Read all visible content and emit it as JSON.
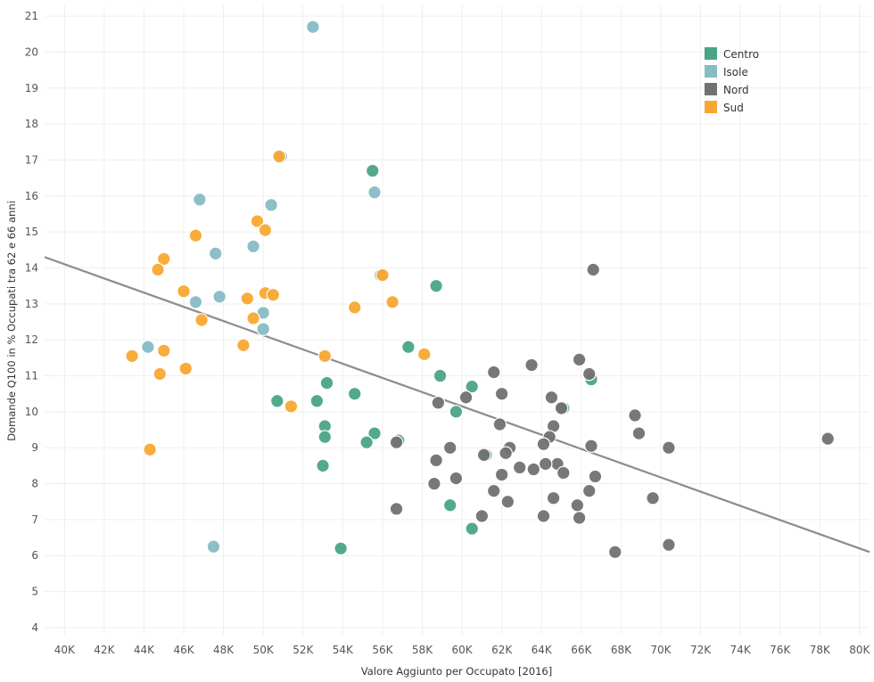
{
  "chart_data": {
    "type": "scatter",
    "xlabel": "Valore Aggiunto per Occupato [2016]",
    "ylabel": "Domande Q100 in % Occupati tra 62 e 66 anni",
    "xlim": [
      39000,
      80500
    ],
    "ylim": [
      3.8,
      21.3
    ],
    "x_ticks": [
      40000,
      42000,
      44000,
      46000,
      48000,
      50000,
      52000,
      54000,
      56000,
      58000,
      60000,
      62000,
      64000,
      66000,
      68000,
      70000,
      72000,
      74000,
      76000,
      78000,
      80000
    ],
    "x_tick_labels": [
      "40K",
      "42K",
      "44K",
      "46K",
      "48K",
      "50K",
      "52K",
      "54K",
      "56K",
      "58K",
      "60K",
      "62K",
      "64K",
      "66K",
      "68K",
      "70K",
      "72K",
      "74K",
      "76K",
      "78K",
      "80K"
    ],
    "y_ticks": [
      4,
      5,
      6,
      7,
      8,
      9,
      10,
      11,
      12,
      13,
      14,
      15,
      16,
      17,
      18,
      19,
      20,
      21
    ],
    "y_tick_labels": [
      "4",
      "5",
      "6",
      "7",
      "8",
      "9",
      "10",
      "11",
      "12",
      "13",
      "14",
      "15",
      "16",
      "17",
      "18",
      "19",
      "20",
      "21"
    ],
    "grid": true,
    "legend_position": "top-right",
    "trend_line": {
      "points": [
        [
          39000,
          14.3
        ],
        [
          80500,
          6.1
        ]
      ],
      "color": "#8c8c8c"
    },
    "series": [
      {
        "name": "Centro",
        "color": "#4aa585",
        "points": [
          [
            55500,
            16.7
          ],
          [
            58700,
            13.5
          ],
          [
            57300,
            11.8
          ],
          [
            58900,
            11.0
          ],
          [
            60500,
            10.7
          ],
          [
            66500,
            10.9
          ],
          [
            53200,
            10.8
          ],
          [
            54600,
            10.5
          ],
          [
            50700,
            10.3
          ],
          [
            52700,
            10.3
          ],
          [
            59700,
            10.0
          ],
          [
            53100,
            9.6
          ],
          [
            53100,
            9.3
          ],
          [
            55600,
            9.4
          ],
          [
            55200,
            9.15
          ],
          [
            56800,
            9.2
          ],
          [
            61200,
            8.8
          ],
          [
            65100,
            10.1
          ],
          [
            53000,
            8.5
          ],
          [
            59400,
            7.4
          ],
          [
            60500,
            6.75
          ],
          [
            53900,
            6.2
          ]
        ]
      },
      {
        "name": "Isole",
        "color": "#86bcc4",
        "points": [
          [
            52500,
            20.7
          ],
          [
            50900,
            17.1
          ],
          [
            55600,
            16.1
          ],
          [
            46800,
            15.9
          ],
          [
            50400,
            15.75
          ],
          [
            47600,
            14.4
          ],
          [
            49500,
            14.6
          ],
          [
            55900,
            13.8
          ],
          [
            46600,
            13.05
          ],
          [
            47800,
            13.2
          ],
          [
            50000,
            12.75
          ],
          [
            50000,
            12.3
          ],
          [
            44200,
            11.8
          ],
          [
            47500,
            6.25
          ]
        ]
      },
      {
        "name": "Nord",
        "color": "#717171",
        "points": [
          [
            66600,
            13.95
          ],
          [
            65900,
            11.45
          ],
          [
            63500,
            11.3
          ],
          [
            61600,
            11.1
          ],
          [
            66400,
            11.05
          ],
          [
            62000,
            10.5
          ],
          [
            64500,
            10.4
          ],
          [
            60200,
            10.4
          ],
          [
            58800,
            10.25
          ],
          [
            65000,
            10.1
          ],
          [
            61900,
            9.65
          ],
          [
            64600,
            9.6
          ],
          [
            68700,
            9.9
          ],
          [
            68900,
            9.4
          ],
          [
            64400,
            9.3
          ],
          [
            64100,
            9.1
          ],
          [
            66500,
            9.05
          ],
          [
            62400,
            9.0
          ],
          [
            70400,
            9.0
          ],
          [
            78400,
            9.25
          ],
          [
            59400,
            9.0
          ],
          [
            56700,
            9.15
          ],
          [
            62200,
            8.85
          ],
          [
            61100,
            8.8
          ],
          [
            58700,
            8.65
          ],
          [
            64800,
            8.55
          ],
          [
            64200,
            8.55
          ],
          [
            63600,
            8.4
          ],
          [
            62900,
            8.45
          ],
          [
            65100,
            8.3
          ],
          [
            66700,
            8.2
          ],
          [
            62000,
            8.25
          ],
          [
            59700,
            8.15
          ],
          [
            58600,
            8.0
          ],
          [
            61600,
            7.8
          ],
          [
            66400,
            7.8
          ],
          [
            64600,
            7.6
          ],
          [
            69600,
            7.6
          ],
          [
            62300,
            7.5
          ],
          [
            65800,
            7.4
          ],
          [
            56700,
            7.3
          ],
          [
            61000,
            7.1
          ],
          [
            64100,
            7.1
          ],
          [
            65900,
            7.05
          ],
          [
            70400,
            6.3
          ],
          [
            67700,
            6.1
          ]
        ]
      },
      {
        "name": "Sud",
        "color": "#f8a832",
        "points": [
          [
            50800,
            17.1
          ],
          [
            49700,
            15.3
          ],
          [
            46600,
            14.9
          ],
          [
            50100,
            15.05
          ],
          [
            45000,
            14.25
          ],
          [
            44700,
            13.95
          ],
          [
            56000,
            13.8
          ],
          [
            46000,
            13.35
          ],
          [
            50100,
            13.3
          ],
          [
            50500,
            13.25
          ],
          [
            49200,
            13.15
          ],
          [
            56500,
            13.05
          ],
          [
            54600,
            12.9
          ],
          [
            46900,
            12.55
          ],
          [
            49500,
            12.6
          ],
          [
            49000,
            11.85
          ],
          [
            43400,
            11.55
          ],
          [
            45000,
            11.7
          ],
          [
            53100,
            11.55
          ],
          [
            58100,
            11.6
          ],
          [
            46100,
            11.2
          ],
          [
            44800,
            11.05
          ],
          [
            51400,
            10.15
          ],
          [
            44300,
            8.95
          ]
        ]
      }
    ]
  }
}
